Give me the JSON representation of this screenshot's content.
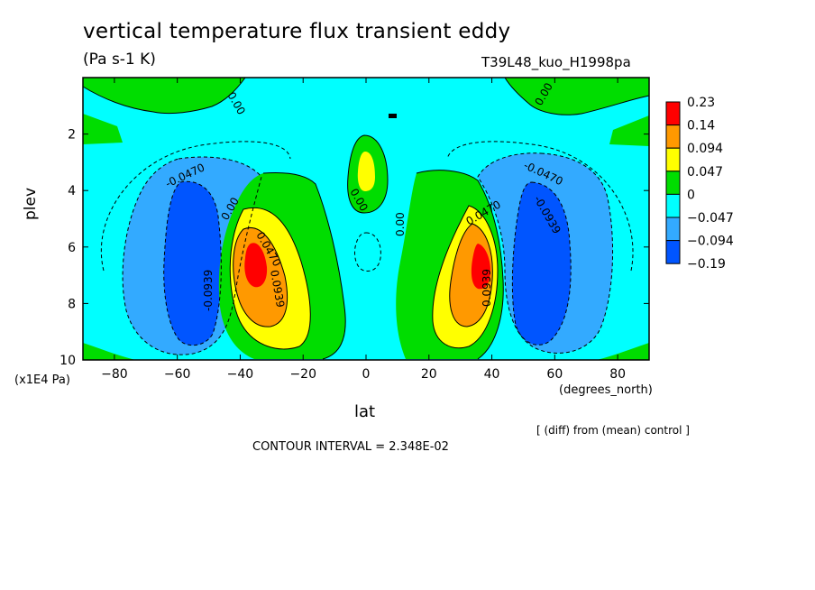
{
  "chart_data": {
    "type": "contour",
    "title": "vertical temperature flux transient eddy",
    "units": "(Pa s-1 K)",
    "run_label": "T39L48_kuo_H1998pa",
    "xlabel": "lat",
    "x_units": "(degrees_north)",
    "ylabel": "plev",
    "y_units": "(x1E4 Pa)",
    "xlim": [
      -90,
      90
    ],
    "ylim": [
      10,
      0
    ],
    "x_ticks": [
      -80,
      -60,
      -40,
      -20,
      0,
      20,
      40,
      60,
      80
    ],
    "y_ticks": [
      2,
      4,
      6,
      8,
      10
    ],
    "legend": {
      "labels": [
        "0.23",
        "0.14",
        "0.094",
        "0.047",
        "0",
        "-0.047",
        "-0.094",
        "-0.19"
      ],
      "colors": [
        "#ff0000",
        "#ff9900",
        "#ffff00",
        "#00dd00",
        "#00ffff",
        "#33aaff",
        "#0055ff"
      ],
      "placement": "right"
    },
    "contour_labels": [
      "0.00",
      "-0.0470",
      "-0.0939",
      "0.0470",
      "0.0939"
    ],
    "contour_interval": "CONTOUR INTERVAL = 2.348E-02",
    "note": "[ (diff) from (mean) control ]"
  }
}
